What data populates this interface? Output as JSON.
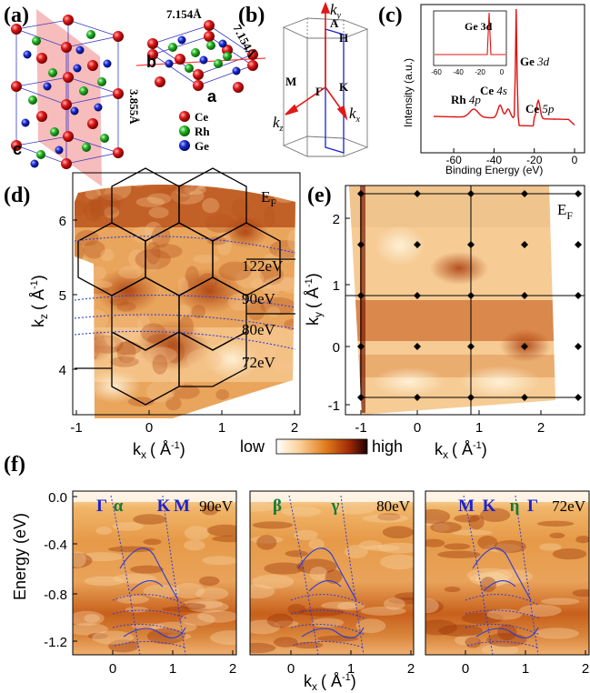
{
  "panels": {
    "a": {
      "label": "(a)",
      "lattice_b": "7.154Å",
      "lattice_a2": "7.154Å",
      "lattice_c": "3.855Å",
      "axis_a": "a",
      "axis_b": "b",
      "axis_c": "c",
      "legend": [
        {
          "label": "Ce",
          "color": "#d01818"
        },
        {
          "label": "Rh",
          "color": "#22b022"
        },
        {
          "label": "Ge",
          "color": "#1a2ad0"
        }
      ]
    },
    "b": {
      "label": "(b)",
      "points": [
        "A",
        "H",
        "M",
        "Γ",
        "K"
      ],
      "axes": [
        "k",
        "k",
        "k"
      ],
      "axis_subs": [
        "y",
        "z",
        "x"
      ]
    },
    "c": {
      "label": "(c)",
      "ylabel": "Intensity (a.u.)",
      "xlabel": "Binding Energy (eV)",
      "ticks": [
        "-60",
        "-40",
        "-20",
        "0"
      ],
      "inset_ticks": [
        "-60",
        "-40",
        "-20",
        "0"
      ],
      "inset_label": "Ge 3d",
      "peaks": [
        {
          "name": "Ge",
          "orbital": "3d"
        },
        {
          "name": "Ce",
          "orbital": "4s"
        },
        {
          "name": "Rh",
          "orbital": "4p"
        },
        {
          "name": "Ce",
          "orbital": "5p"
        }
      ]
    },
    "d": {
      "label": "(d)",
      "fermi": "E",
      "fermi_sub": "F",
      "ylabel": "k",
      "ylabel_sub": "z",
      "yunit": "( Å",
      "yunit_exp": "-1",
      "yunit_end": ")",
      "xlabel": "k",
      "xlabel_sub": "x",
      "xunit": "( Å",
      "xunit_exp": "-1",
      "xunit_end": ")",
      "yticks": [
        "6",
        "5",
        "4"
      ],
      "xticks": [
        "-1",
        "0",
        "1",
        "2"
      ],
      "energies": [
        "122eV",
        "90eV",
        "80eV",
        "72eV"
      ]
    },
    "e": {
      "label": "(e)",
      "fermi": "E",
      "fermi_sub": "F",
      "ylabel": "k",
      "ylabel_sub": "y",
      "yunit": "( Å",
      "yunit_exp": "-1",
      "yunit_end": ")",
      "xlabel": "k",
      "xlabel_sub": "x",
      "xunit": "( Å",
      "xunit_exp": "-1",
      "xunit_end": ")",
      "yticks": [
        "2",
        "1",
        "0",
        "-1"
      ],
      "xticks": [
        "-1",
        "0",
        "1",
        "2"
      ]
    },
    "colorbar": {
      "low": "low",
      "high": "high"
    },
    "f": {
      "label": "(f)",
      "ylabel": "Energy (eV)",
      "yticks": [
        "0.0",
        "-0.4",
        "-0.8",
        "-1.2"
      ],
      "xlabel": "k",
      "xlabel_sub": "x",
      "xunit": "( Å",
      "xunit_exp": "-1",
      "xunit_end": ")",
      "subpanels": [
        {
          "energy": "90eV",
          "marks": [
            {
              "t": "Γ",
              "c": "#1a22d0"
            },
            {
              "t": "α",
              "c": "#117a3a"
            },
            {
              "t": "K",
              "c": "#1a22d0"
            },
            {
              "t": "M",
              "c": "#1a22d0"
            }
          ],
          "xticks": [
            "0",
            "1",
            "2"
          ]
        },
        {
          "energy": "80eV",
          "marks": [
            {
              "t": "β",
              "c": "#117a3a"
            },
            {
              "t": "γ",
              "c": "#117a3a"
            }
          ],
          "xticks": [
            "0",
            "1",
            "2"
          ]
        },
        {
          "energy": "72eV",
          "marks": [
            {
              "t": "M",
              "c": "#1a22d0"
            },
            {
              "t": "K",
              "c": "#1a22d0"
            },
            {
              "t": "η",
              "c": "#117a3a"
            },
            {
              "t": "Γ",
              "c": "#1a22d0"
            }
          ],
          "xticks": [
            "0",
            "1",
            "2"
          ]
        }
      ]
    }
  }
}
